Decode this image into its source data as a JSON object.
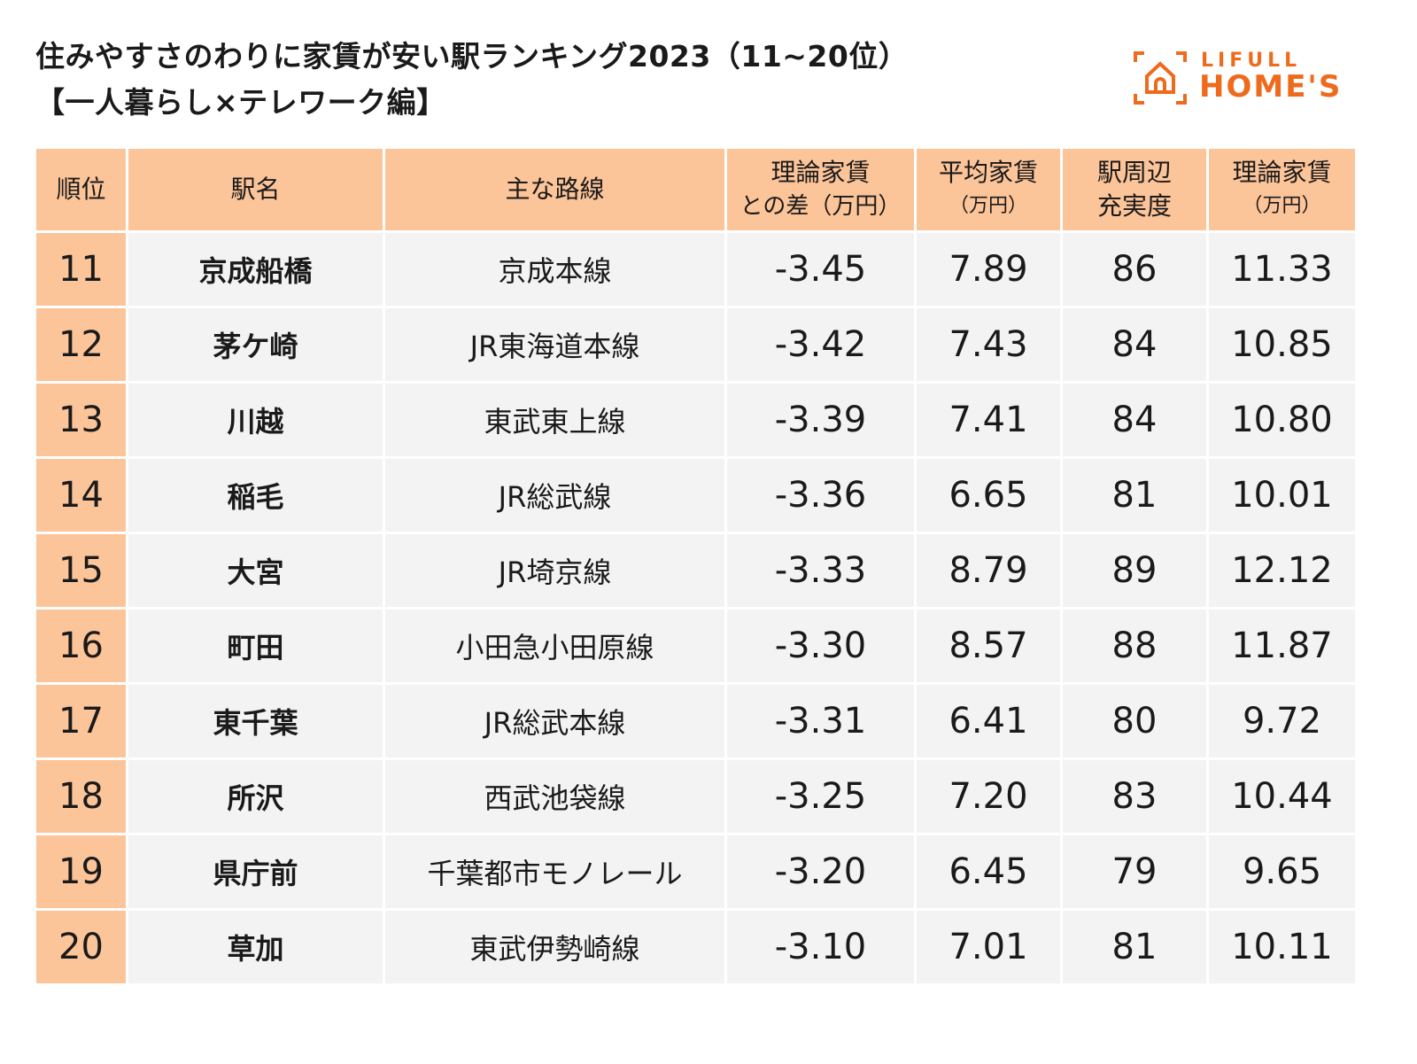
{
  "title_line1": "住みやすさのわりに家賃が安い駅ランキング2023（11~20位）",
  "title_line2": "【一人暮らし×テレワーク編】",
  "logo": {
    "line1": "LIFULL",
    "line2": "HOME'S",
    "color": "#EE6B1E"
  },
  "colors": {
    "header_bg": "#FCC499",
    "row_bg": "#F3F3F3"
  },
  "chart_data": {
    "type": "table",
    "columns": [
      "順位",
      "駅名",
      "主な路線",
      "理論家賃との差（万円）",
      "平均家賃（万円）",
      "駅周辺充実度",
      "理論家賃（万円）"
    ],
    "header_lines": [
      [
        "順位",
        ""
      ],
      [
        "駅名",
        ""
      ],
      [
        "主な路線",
        ""
      ],
      [
        "理論家賃",
        "との差（万円）"
      ],
      [
        "平均家賃",
        "（万円）"
      ],
      [
        "駅周辺",
        "充実度"
      ],
      [
        "理論家賃",
        "（万円）"
      ]
    ],
    "rows": [
      [
        "11",
        "京成船橋",
        "京成本線",
        "-3.45",
        "7.89",
        "86",
        "11.33"
      ],
      [
        "12",
        "茅ケ崎",
        "JR東海道本線",
        "-3.42",
        "7.43",
        "84",
        "10.85"
      ],
      [
        "13",
        "川越",
        "東武東上線",
        "-3.39",
        "7.41",
        "84",
        "10.80"
      ],
      [
        "14",
        "稲毛",
        "JR総武線",
        "-3.36",
        "6.65",
        "81",
        "10.01"
      ],
      [
        "15",
        "大宮",
        "JR埼京線",
        "-3.33",
        "8.79",
        "89",
        "12.12"
      ],
      [
        "16",
        "町田",
        "小田急小田原線",
        "-3.30",
        "8.57",
        "88",
        "11.87"
      ],
      [
        "17",
        "東千葉",
        "JR総武本線",
        "-3.31",
        "6.41",
        "80",
        "9.72"
      ],
      [
        "18",
        "所沢",
        "西武池袋線",
        "-3.25",
        "7.20",
        "83",
        "10.44"
      ],
      [
        "19",
        "県庁前",
        "千葉都市モノレール",
        "-3.20",
        "6.45",
        "79",
        "9.65"
      ],
      [
        "20",
        "草加",
        "東武伊勢崎線",
        "-3.10",
        "7.01",
        "81",
        "10.11"
      ]
    ]
  }
}
